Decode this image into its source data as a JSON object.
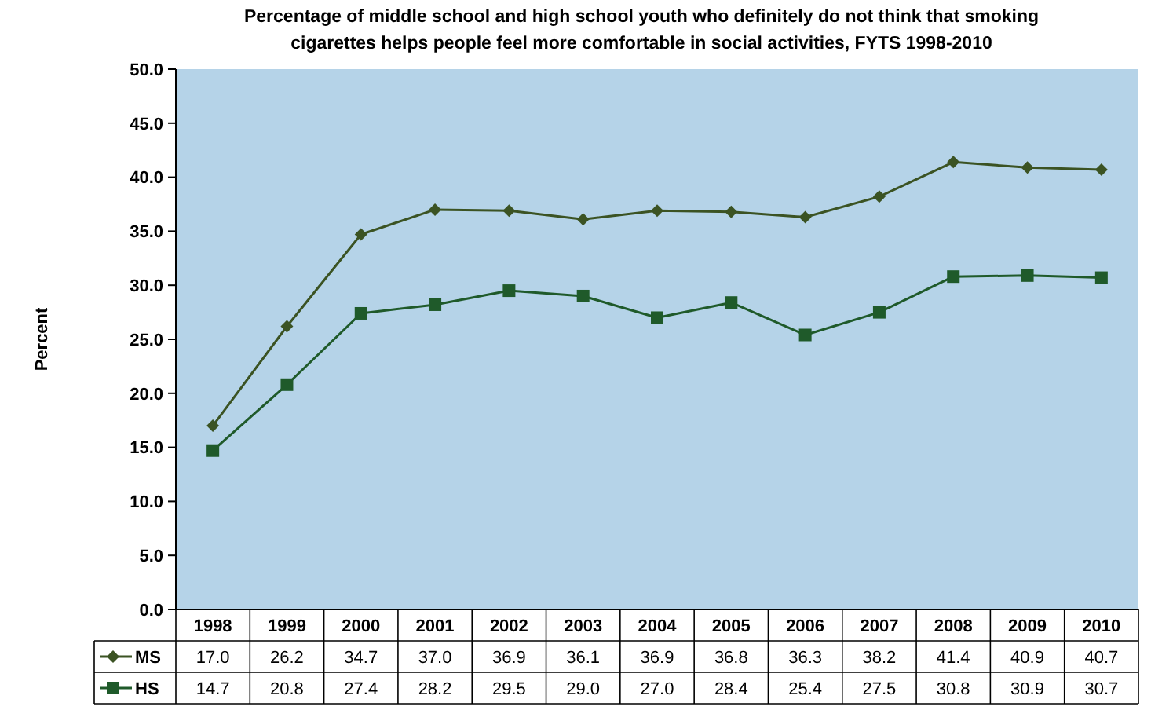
{
  "chart_data": {
    "type": "line",
    "title": "Percentage of middle school and high school youth who definitely do not think that smoking cigarettes helps people feel more comfortable in social activities, FYTS 1998-2010",
    "ylabel": "Percent",
    "categories": [
      "1998",
      "1999",
      "2000",
      "2001",
      "2002",
      "2003",
      "2004",
      "2005",
      "2006",
      "2007",
      "2008",
      "2009",
      "2010"
    ],
    "series": [
      {
        "name": "MS",
        "color": "#3b5323",
        "marker": "diamond",
        "values": [
          17.0,
          26.2,
          34.7,
          37.0,
          36.9,
          36.1,
          36.9,
          36.8,
          36.3,
          38.2,
          41.4,
          40.9,
          40.7
        ],
        "value_labels": [
          "17.0",
          "26.2",
          "34.7",
          "37.0",
          "36.9",
          "36.1",
          "36.9",
          "36.8",
          "36.3",
          "38.2",
          "41.4",
          "40.9",
          "40.7"
        ]
      },
      {
        "name": "HS",
        "color": "#1f5a2a",
        "marker": "square",
        "values": [
          14.7,
          20.8,
          27.4,
          28.2,
          29.5,
          29.0,
          27.0,
          28.4,
          25.4,
          27.5,
          30.8,
          30.9,
          30.7
        ],
        "value_labels": [
          "14.7",
          "20.8",
          "27.4",
          "28.2",
          "29.5",
          "29.0",
          "27.0",
          "28.4",
          "25.4",
          "27.5",
          "30.8",
          "30.9",
          "30.7"
        ]
      }
    ],
    "ylim": [
      0,
      50
    ],
    "yticks": [
      {
        "value": 0,
        "label": "0.0"
      },
      {
        "value": 5,
        "label": "5.0"
      },
      {
        "value": 10,
        "label": "10.0"
      },
      {
        "value": 15,
        "label": "15.0"
      },
      {
        "value": 20,
        "label": "20.0"
      },
      {
        "value": 25,
        "label": "25.0"
      },
      {
        "value": 30,
        "label": "30.0"
      },
      {
        "value": 35,
        "label": "35.0"
      },
      {
        "value": 40,
        "label": "40.0"
      },
      {
        "value": 45,
        "label": "45.0"
      },
      {
        "value": 50,
        "label": "50.0"
      }
    ],
    "grid": false,
    "legend": "bottom left",
    "line_style": "solid"
  }
}
